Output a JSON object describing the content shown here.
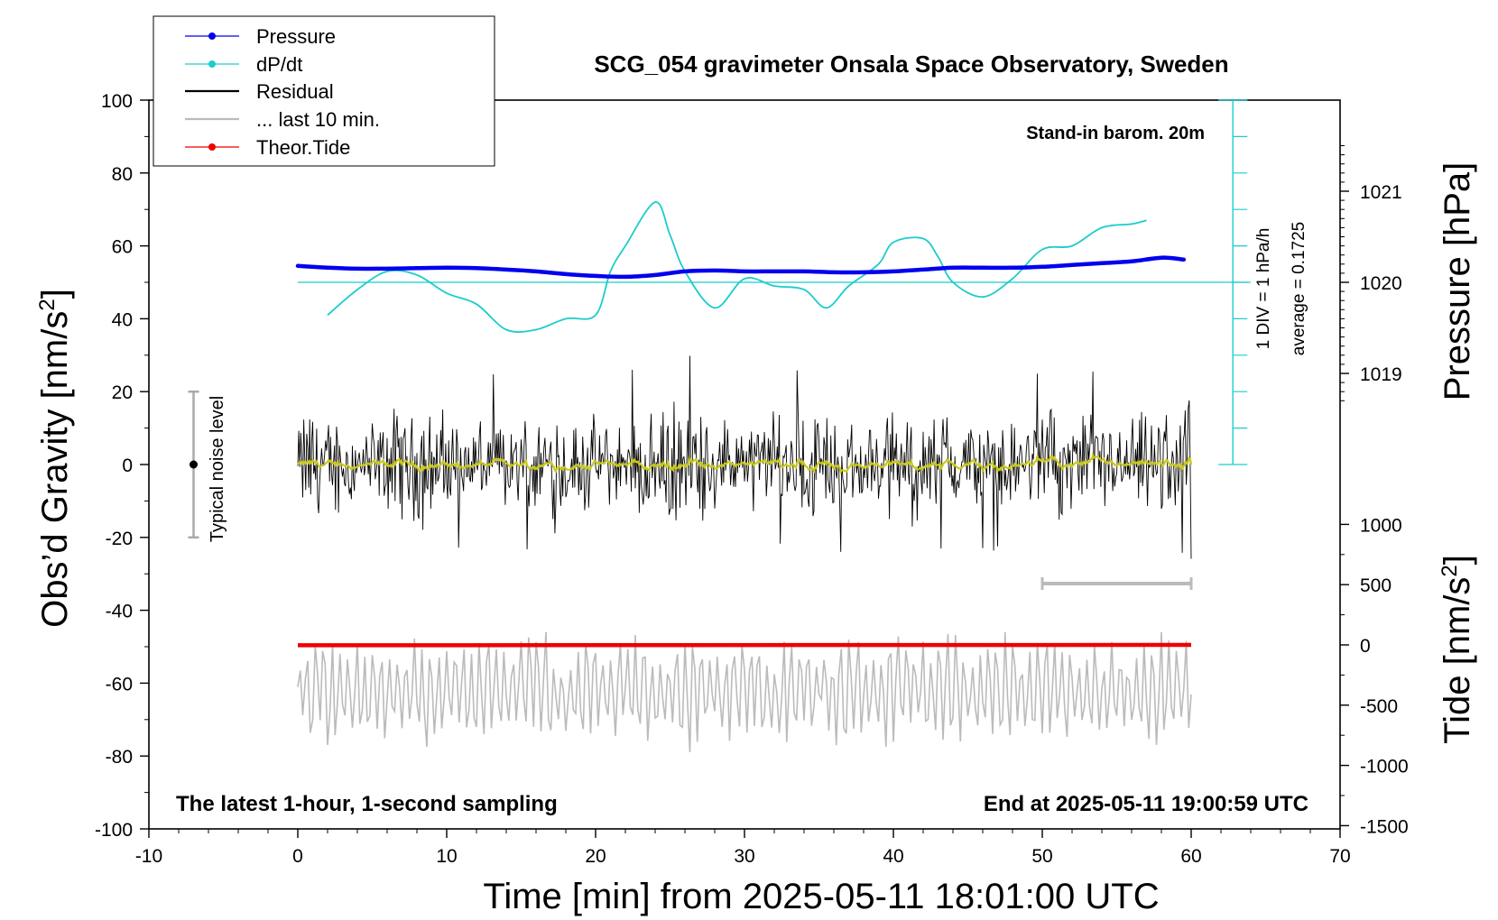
{
  "chart_data": {
    "type": "line",
    "title": "SCG_054 gravimeter Onsala Space Observatory, Sweden",
    "xlabel": "Time [min] from 2025-05-11 18:01:00 UTC",
    "ylabel": "Obs’d Gravity [nm/s",
    "ylabel_sup": "2",
    "ylabel_close": "]",
    "y2label_pressure": "Pressure [hPa]",
    "y2label_tide": "Tide [nm/s",
    "y2label_tide_sup": "2",
    "y2label_tide_close": "]",
    "xlim": [
      -10,
      70
    ],
    "ylim": [
      -100,
      100
    ],
    "x_ticks": [
      "-10",
      "0",
      "10",
      "20",
      "30",
      "40",
      "50",
      "60",
      "70"
    ],
    "y_ticks": [
      "100",
      "80",
      "60",
      "40",
      "20",
      "0",
      "-20",
      "-40",
      "-60",
      "-80",
      "-100"
    ],
    "pressure_ticks": [
      "1021",
      "1020",
      "1019"
    ],
    "tide_ticks": [
      "1000",
      "500",
      "0",
      "-500",
      "-1000",
      "-1500"
    ],
    "legend": {
      "placement": "top-left",
      "entries": [
        "Pressure",
        "dP/dt",
        "Residual",
        "... last 10 min.",
        "Theor.Tide"
      ]
    },
    "annotations": {
      "barometer": "Stand-in barom. 20m",
      "dpdt_scale": "1 DIV = 1 hPa/h",
      "dpdt_average": "average = 0.1725",
      "noise_label": "Typical noise level",
      "bottom_left": "The latest 1-hour, 1-second sampling",
      "bottom_right": "End at 2025-05-11 19:00:59 UTC"
    },
    "noise_level": {
      "x": -7,
      "center": 0,
      "range": [
        -20,
        20
      ]
    },
    "last_10_min_bar": {
      "from": 50,
      "to": 60
    },
    "colors": {
      "pressure": "#0000ee",
      "dpdt": "#1ccccc",
      "residual": "#000000",
      "residual_smooth": "#c8c81e",
      "last10": "#bbbbbb",
      "tide": "#ee0000"
    },
    "series": [
      {
        "name": "Pressure",
        "unit": "hPa",
        "x": [
          0,
          2,
          4,
          6,
          8,
          10,
          12,
          14,
          16,
          18,
          20,
          22,
          24,
          26,
          28,
          30,
          32,
          34,
          36,
          38,
          40,
          42,
          44,
          46,
          48,
          50,
          52,
          54,
          56,
          58,
          59.5
        ],
        "values": [
          1020.18,
          1020.16,
          1020.15,
          1020.15,
          1020.155,
          1020.16,
          1020.155,
          1020.14,
          1020.12,
          1020.09,
          1020.07,
          1020.06,
          1020.08,
          1020.12,
          1020.13,
          1020.12,
          1020.12,
          1020.12,
          1020.11,
          1020.11,
          1020.12,
          1020.14,
          1020.16,
          1020.16,
          1020.16,
          1020.17,
          1020.19,
          1020.21,
          1020.23,
          1020.27,
          1020.25
        ]
      },
      {
        "name": "dP/dt",
        "unit": "hPa/h",
        "x": [
          2,
          4,
          6,
          8,
          10,
          12,
          14,
          16,
          18,
          20,
          21,
          22,
          24,
          25,
          26,
          28,
          30,
          32,
          34,
          35.5,
          37,
          39,
          40,
          42,
          43,
          44,
          46,
          48,
          50,
          52,
          54,
          56,
          57
        ],
        "values": [
          -0.9,
          -0.2,
          0.3,
          0.2,
          -0.3,
          -0.6,
          -1.3,
          -1.3,
          -1.0,
          -0.9,
          0.3,
          1.0,
          2.2,
          1.3,
          0.3,
          -0.7,
          0.1,
          -0.1,
          -0.2,
          -0.7,
          -0.1,
          0.5,
          1.1,
          1.2,
          0.7,
          0.0,
          -0.4,
          0.1,
          0.9,
          1.0,
          1.5,
          1.6,
          1.7
        ]
      },
      {
        "name": "Residual",
        "unit": "nm/s2",
        "x": [
          0,
          60
        ],
        "values": [
          0,
          0
        ],
        "amplitude_range": [
          -26,
          30
        ]
      },
      {
        "name": "Theor.Tide",
        "unit": "nm/s2",
        "x": [
          0,
          60
        ],
        "values": [
          -3,
          0
        ]
      }
    ]
  }
}
